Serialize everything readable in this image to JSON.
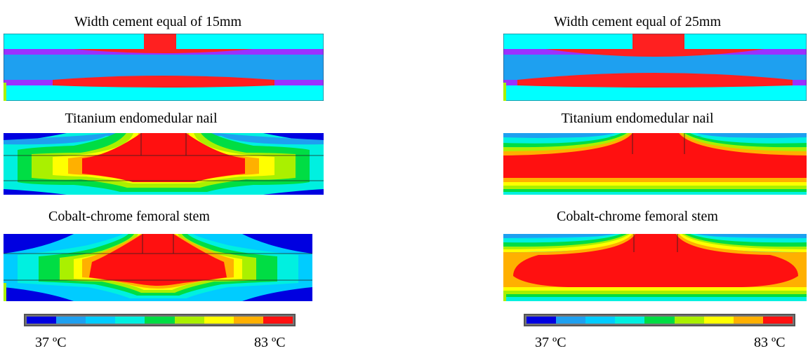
{
  "columns": [
    {
      "schema_title": "Width cement equal of 15mm",
      "titanium_title": "Titanium endomedular nail",
      "cobalt_title": "Cobalt-chrome femoral stem"
    },
    {
      "schema_title": "Width cement equal of 25mm",
      "titanium_title": "Titanium endomedular nail",
      "cobalt_title": "Cobalt-chrome femoral stem"
    }
  ],
  "colorbar": {
    "min_label": "37 ºC",
    "max_label": "83 ºC",
    "colors": [
      "#0000e0",
      "#1ea0f0",
      "#00ccff",
      "#00f0e0",
      "#00dd44",
      "#aaf000",
      "#ffff00",
      "#ffb000",
      "#ff1010"
    ]
  }
}
